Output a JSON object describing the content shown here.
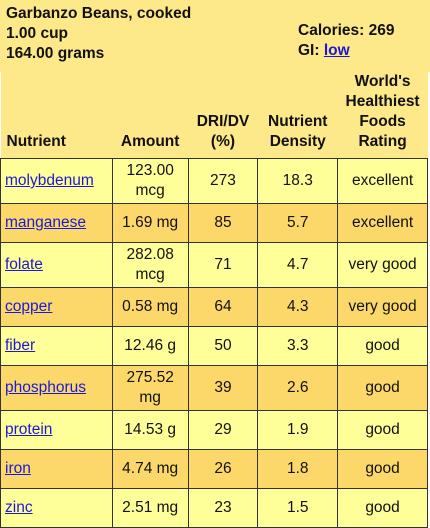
{
  "food": {
    "name": "Garbanzo Beans, cooked",
    "serving": "1.00 cup",
    "weight": "164.00 grams",
    "calories_label": "Calories: 269",
    "gi_label": "GI:",
    "gi_value": "low"
  },
  "columns": {
    "nutrient": "Nutrient",
    "amount": "Amount",
    "dri_line1": "DRI/DV",
    "dri_line2": "(%)",
    "density_line1": "Nutrient",
    "density_line2": "Density",
    "rating_line1": "World's",
    "rating_line2": "Healthiest",
    "rating_line3": "Foods",
    "rating_line4": "Rating"
  },
  "rows": [
    {
      "nutrient": "molybdenum",
      "amount_line1": "123.00",
      "amount_line2": "mcg",
      "dri": "273",
      "density": "18.3",
      "rating": "excellent"
    },
    {
      "nutrient": "manganese",
      "amount_line1": "1.69 mg",
      "amount_line2": "",
      "dri": "85",
      "density": "5.7",
      "rating": "excellent"
    },
    {
      "nutrient": "folate",
      "amount_line1": "282.08",
      "amount_line2": "mcg",
      "dri": "71",
      "density": "4.7",
      "rating": "very good"
    },
    {
      "nutrient": "copper",
      "amount_line1": "0.58 mg",
      "amount_line2": "",
      "dri": "64",
      "density": "4.3",
      "rating": "very good"
    },
    {
      "nutrient": "fiber",
      "amount_line1": "12.46 g",
      "amount_line2": "",
      "dri": "50",
      "density": "3.3",
      "rating": "good"
    },
    {
      "nutrient": "phosphorus",
      "amount_line1": "275.52",
      "amount_line2": "mg",
      "dri": "39",
      "density": "2.6",
      "rating": "good"
    },
    {
      "nutrient": "protein",
      "amount_line1": "14.53 g",
      "amount_line2": "",
      "dri": "29",
      "density": "1.9",
      "rating": "good"
    },
    {
      "nutrient": "iron",
      "amount_line1": "4.74 mg",
      "amount_line2": "",
      "dri": "26",
      "density": "1.8",
      "rating": "good"
    },
    {
      "nutrient": "zinc",
      "amount_line1": "2.51 mg",
      "amount_line2": "",
      "dri": "23",
      "density": "1.5",
      "rating": "good"
    }
  ]
}
